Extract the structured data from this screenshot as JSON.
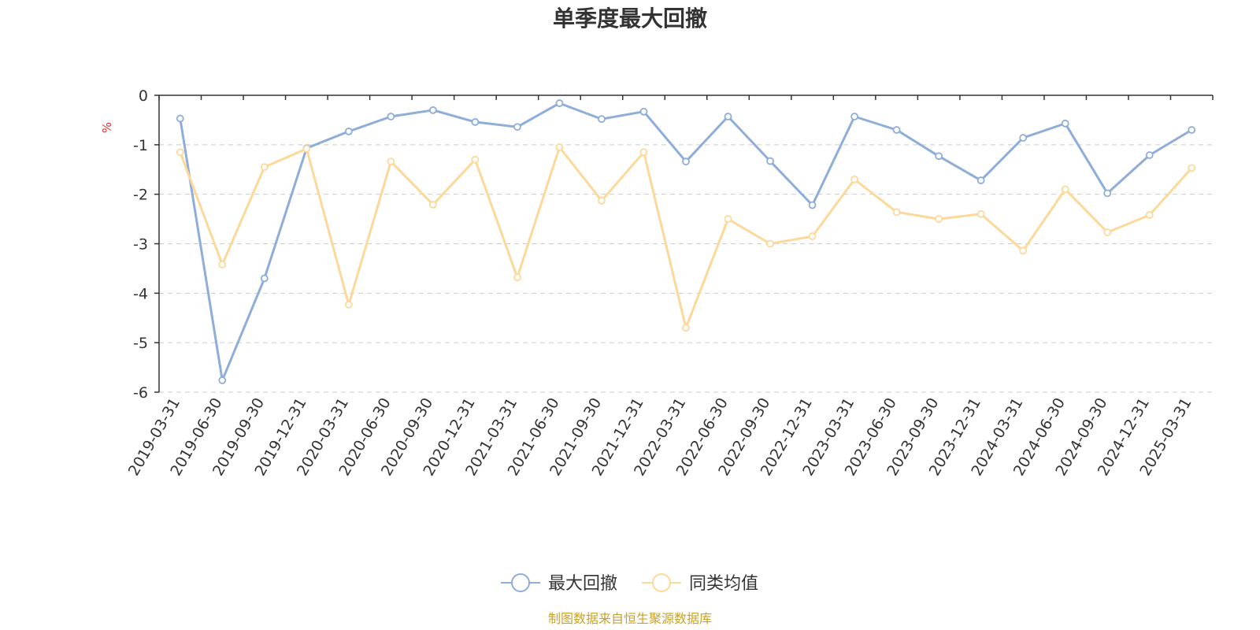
{
  "chart_data": {
    "type": "line",
    "title": "单季度最大回撤",
    "ylabel": "%",
    "xlabel": "",
    "ylim": [
      -6,
      0
    ],
    "yticks": [
      0,
      -1,
      -2,
      -3,
      -4,
      -5,
      -6
    ],
    "grid": true,
    "legend_position": "bottom-center",
    "categories": [
      "2019-03-31",
      "2019-06-30",
      "2019-09-30",
      "2019-12-31",
      "2020-03-31",
      "2020-06-30",
      "2020-09-30",
      "2020-12-31",
      "2021-03-31",
      "2021-06-30",
      "2021-09-30",
      "2021-12-31",
      "2022-03-31",
      "2022-06-30",
      "2022-09-30",
      "2022-12-31",
      "2023-03-31",
      "2023-06-30",
      "2023-09-30",
      "2023-12-31",
      "2024-03-31",
      "2024-06-30",
      "2024-09-30",
      "2024-12-31",
      "2025-03-31"
    ],
    "series": [
      {
        "name": "最大回撤",
        "color": "#8eadd9",
        "values": [
          -0.47,
          -5.76,
          -3.7,
          -1.07,
          -0.73,
          -0.43,
          -0.3,
          -0.54,
          -0.64,
          -0.16,
          -0.48,
          -0.33,
          -1.34,
          -0.43,
          -1.33,
          -2.22,
          -0.43,
          -0.7,
          -1.23,
          -1.72,
          -0.86,
          -0.57,
          -1.98,
          -1.21,
          -0.7
        ]
      },
      {
        "name": "同类均值",
        "color": "#fcd99a",
        "values": [
          -1.15,
          -3.42,
          -1.45,
          -1.08,
          -4.23,
          -1.34,
          -2.21,
          -1.3,
          -3.68,
          -1.05,
          -2.13,
          -1.15,
          -4.7,
          -2.5,
          -3.0,
          -2.85,
          -1.7,
          -2.36,
          -2.5,
          -2.4,
          -3.14,
          -1.9,
          -2.77,
          -2.42,
          -1.47
        ]
      }
    ]
  },
  "source_note": "制图数据来自恒生聚源数据库"
}
